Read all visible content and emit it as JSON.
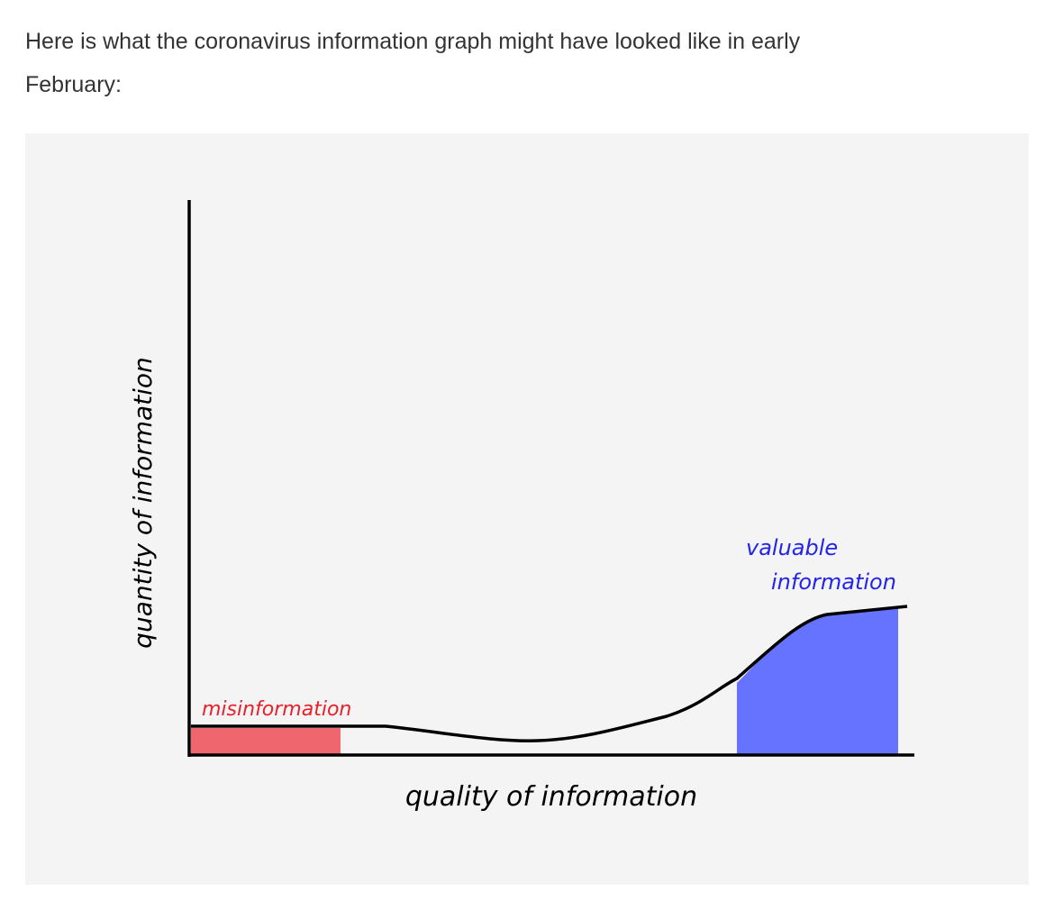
{
  "paragraph": {
    "lines": [
      "Here is what the coronavirus information graph might have looked like in early",
      "February:"
    ]
  },
  "figure": {
    "y_axis_label": "quantity of information",
    "x_axis_label": "quality of information",
    "annotations": {
      "misinformation": "misinformation",
      "valuable": [
        "valuable",
        "information"
      ]
    }
  }
}
